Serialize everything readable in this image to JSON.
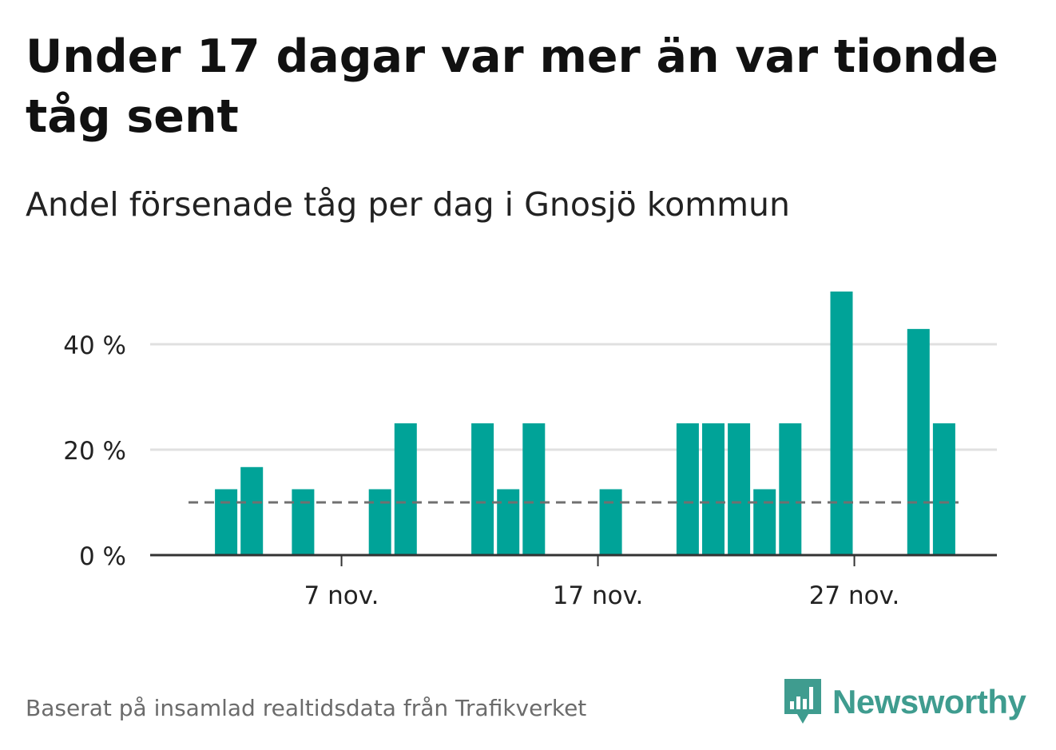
{
  "header": {
    "title": "Under 17 dagar var mer än var tionde tåg sent",
    "subtitle": "Andel försenade tåg per dag i Gnosjö kommun"
  },
  "footer": {
    "source": "Baserat på insamlad realtidsdata från Trafikverket",
    "brand": "Newsworthy"
  },
  "colors": {
    "bar": "#00a398",
    "reference_line": "#707070",
    "grid": "#e0e0e0",
    "axis": "#333333",
    "brand": "#3f9c8f"
  },
  "chart_data": {
    "type": "bar",
    "x": [
      1,
      2,
      3,
      4,
      5,
      6,
      7,
      8,
      9,
      10,
      11,
      12,
      13,
      14,
      15,
      16,
      17,
      18,
      19,
      20,
      21,
      22,
      23,
      24,
      25,
      26,
      27,
      28,
      29,
      30
    ],
    "values": [
      0,
      12.5,
      16.7,
      0,
      12.5,
      0,
      0,
      12.5,
      25,
      0,
      0,
      25,
      12.5,
      25,
      0,
      0,
      12.5,
      0,
      0,
      25,
      25,
      25,
      12.5,
      25,
      0,
      50,
      0,
      0,
      42.9,
      25
    ],
    "x_ticks": [
      {
        "x": 7,
        "label": "7 nov."
      },
      {
        "x": 17,
        "label": "17 nov."
      },
      {
        "x": 27,
        "label": "27 nov."
      }
    ],
    "y_ticks": [
      {
        "value": 0,
        "label": "0 %"
      },
      {
        "value": 20,
        "label": "20 %"
      },
      {
        "value": 40,
        "label": "40 %"
      }
    ],
    "reference_line": 10,
    "ylim": [
      0,
      52
    ],
    "grid": true
  }
}
